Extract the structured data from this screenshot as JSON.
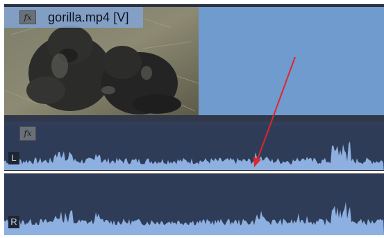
{
  "clip": {
    "fx_label": "fx",
    "name": "gorilla.mp4 [V]"
  },
  "audio": {
    "fx_label": "fx",
    "channels": [
      {
        "label": "L"
      },
      {
        "label": "R"
      }
    ]
  },
  "colors": {
    "video_clip": "#6f9bcf",
    "audio_track_bg": "#2f3c58",
    "waveform": "#8db0e0",
    "annotation_arrow": "#e0262a"
  },
  "icons": [
    "fx-icon",
    "red-arrow-annotation"
  ]
}
